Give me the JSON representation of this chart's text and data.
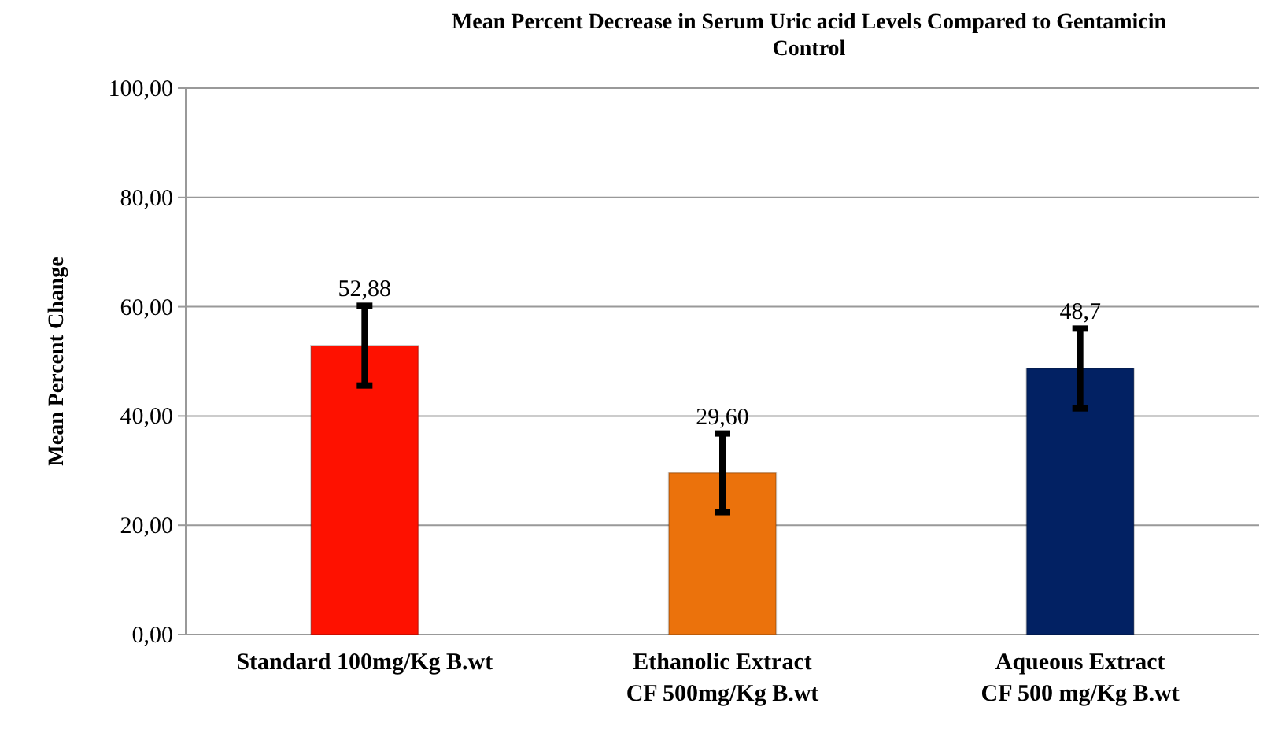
{
  "chart_data": {
    "type": "bar",
    "title": "Mean Percent Decrease in  Serum Uric acid Levels Compared to Gentamicin Control",
    "ylabel": "Mean Percent Change",
    "categories": [
      "Standard 100mg/Kg B.wt",
      "Ethanolic Extract\nCF 500mg/Kg B.wt",
      "Aqueous Extract\nCF 500 mg/Kg B.wt"
    ],
    "values": [
      52.88,
      29.6,
      48.7
    ],
    "colors": [
      "#fe1100",
      "#eb720c",
      "#022163"
    ],
    "errors": [
      7.3,
      7.2,
      7.3
    ],
    "value_labels": [
      "52,88",
      "29,60",
      "48,7"
    ],
    "ylim": [
      0,
      100
    ],
    "yticks": [
      {
        "value": 0,
        "label": "0,00"
      },
      {
        "value": 20,
        "label": "20,00"
      },
      {
        "value": 40,
        "label": "40,00"
      },
      {
        "value": 60,
        "label": "60,00"
      },
      {
        "value": 80,
        "label": "80,00"
      },
      {
        "value": 100,
        "label": "100,00"
      }
    ],
    "grid": "y"
  }
}
